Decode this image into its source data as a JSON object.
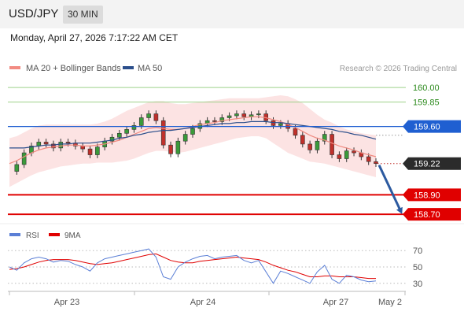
{
  "header": {
    "pair": "USD/JPY",
    "timeframe": "30 MIN",
    "datetime": "Monday, April 27, 2026 7:17:22 AM CET"
  },
  "chart_data": {
    "type": "line",
    "title": "",
    "legend": {
      "placement": "top-left",
      "items": [
        {
          "name": "MA 20 + Bollinger Bands",
          "color": "#f28b82"
        },
        {
          "name": "MA 50",
          "color": "#2c4f8c"
        }
      ]
    },
    "credit": "Research © 2026 Trading Central",
    "x_ticks": [
      "Apr 23",
      "Apr 24",
      "Apr 27",
      "May 2"
    ],
    "ylim": [
      158.62,
      160.13
    ],
    "last_price": "159.22",
    "levels": [
      {
        "label": "160.00",
        "value": 160.0,
        "kind": "resistance",
        "color": "#2e8b1f",
        "line": "#9ed18a"
      },
      {
        "label": "159.85",
        "value": 159.85,
        "kind": "resistance",
        "color": "#2e8b1f",
        "line": "#9ed18a"
      },
      {
        "label": "159.60",
        "value": 159.6,
        "kind": "pivot",
        "color": "#1f5fd1",
        "line": "#1f5fd1"
      },
      {
        "label": "158.90",
        "value": 158.9,
        "kind": "support",
        "color": "#e00000",
        "line": "#e00000"
      },
      {
        "label": "158.70",
        "value": 158.7,
        "kind": "support",
        "color": "#e00000",
        "line": "#e00000"
      }
    ],
    "forecast": {
      "from": 159.22,
      "to": 158.7,
      "color": "#2c5aa0"
    },
    "close": [
      159.14,
      159.21,
      159.33,
      159.4,
      159.44,
      159.42,
      159.38,
      159.44,
      159.43,
      159.4,
      159.37,
      159.31,
      159.39,
      159.45,
      159.49,
      159.53,
      159.57,
      159.61,
      159.69,
      159.73,
      159.66,
      159.41,
      159.32,
      159.45,
      159.52,
      159.58,
      159.63,
      159.66,
      159.65,
      159.69,
      159.71,
      159.73,
      159.7,
      159.72,
      159.73,
      159.66,
      159.61,
      159.63,
      159.58,
      159.51,
      159.42,
      159.36,
      159.45,
      159.52,
      159.31,
      159.27,
      159.35,
      159.33,
      159.29,
      159.24,
      159.22
    ],
    "ma20": [
      159.22,
      159.25,
      159.29,
      159.33,
      159.36,
      159.38,
      159.39,
      159.4,
      159.41,
      159.41,
      159.4,
      159.4,
      159.41,
      159.42,
      159.44,
      159.46,
      159.49,
      159.52,
      159.55,
      159.58,
      159.59,
      159.58,
      159.57,
      159.57,
      159.58,
      159.6,
      159.62,
      159.63,
      159.64,
      159.66,
      159.67,
      159.68,
      159.69,
      159.7,
      159.7,
      159.69,
      159.67,
      159.65,
      159.62,
      159.59,
      159.55,
      159.51,
      159.48,
      159.46,
      159.43,
      159.4,
      159.38,
      159.36,
      159.33,
      159.31,
      159.29
    ],
    "ma50": [
      159.38,
      159.38,
      159.38,
      159.39,
      159.4,
      159.41,
      159.41,
      159.42,
      159.42,
      159.43,
      159.43,
      159.43,
      159.44,
      159.45,
      159.46,
      159.48,
      159.49,
      159.51,
      159.52,
      159.54,
      159.55,
      159.56,
      159.56,
      159.57,
      159.58,
      159.59,
      159.6,
      159.61,
      159.62,
      159.63,
      159.63,
      159.64,
      159.64,
      159.65,
      159.65,
      159.65,
      159.64,
      159.64,
      159.63,
      159.62,
      159.61,
      159.6,
      159.59,
      159.58,
      159.57,
      159.55,
      159.54,
      159.52,
      159.51,
      159.49,
      159.47
    ],
    "bb_upper": [
      159.48,
      159.5,
      159.54,
      159.58,
      159.61,
      159.62,
      159.62,
      159.62,
      159.62,
      159.62,
      159.62,
      159.62,
      159.63,
      159.65,
      159.68,
      159.72,
      159.76,
      159.79,
      159.82,
      159.85,
      159.86,
      159.86,
      159.84,
      159.83,
      159.83,
      159.84,
      159.85,
      159.86,
      159.87,
      159.88,
      159.89,
      159.89,
      159.89,
      159.89,
      159.89,
      159.9,
      159.91,
      159.92,
      159.91,
      159.88,
      159.84,
      159.78,
      159.72,
      159.67,
      159.64,
      159.6,
      159.57,
      159.55,
      159.53,
      159.52,
      159.51
    ],
    "bb_lower": [
      158.98,
      159.02,
      159.06,
      159.1,
      159.13,
      159.15,
      159.17,
      159.19,
      159.2,
      159.21,
      159.22,
      159.22,
      159.23,
      159.23,
      159.23,
      159.24,
      159.25,
      159.27,
      159.3,
      159.33,
      159.35,
      159.35,
      159.34,
      159.33,
      159.34,
      159.36,
      159.38,
      159.4,
      159.42,
      159.44,
      159.46,
      159.48,
      159.49,
      159.5,
      159.5,
      159.48,
      159.43,
      159.38,
      159.33,
      159.3,
      159.27,
      159.24,
      159.23,
      159.22,
      159.2,
      159.18,
      159.16,
      159.14,
      159.12,
      159.1,
      159.08
    ],
    "rsi_panel": {
      "legend": [
        {
          "name": "RSI",
          "color": "#5b7fd6"
        },
        {
          "name": "9MA",
          "color": "#e00000"
        }
      ],
      "ylim": [
        25,
        75
      ],
      "ticks": [
        "70",
        "50",
        "30"
      ],
      "rsi": [
        50,
        46,
        55,
        60,
        62,
        60,
        56,
        58,
        57,
        53,
        50,
        45,
        55,
        60,
        62,
        64,
        66,
        68,
        70,
        72,
        62,
        38,
        35,
        50,
        56,
        60,
        63,
        64,
        60,
        62,
        63,
        64,
        58,
        55,
        58,
        44,
        30,
        45,
        42,
        38,
        34,
        30,
        44,
        52,
        35,
        30,
        40,
        38,
        34,
        32,
        33
      ],
      "ma9": [
        47,
        48,
        50,
        53,
        56,
        58,
        59,
        59,
        59,
        58,
        56,
        54,
        53,
        54,
        55,
        57,
        59,
        61,
        63,
        65,
        66,
        62,
        58,
        56,
        55,
        55,
        57,
        58,
        59,
        60,
        61,
        62,
        61,
        60,
        59,
        56,
        52,
        49,
        46,
        44,
        41,
        38,
        38,
        39,
        39,
        38,
        38,
        38,
        37,
        36,
        36
      ]
    }
  }
}
